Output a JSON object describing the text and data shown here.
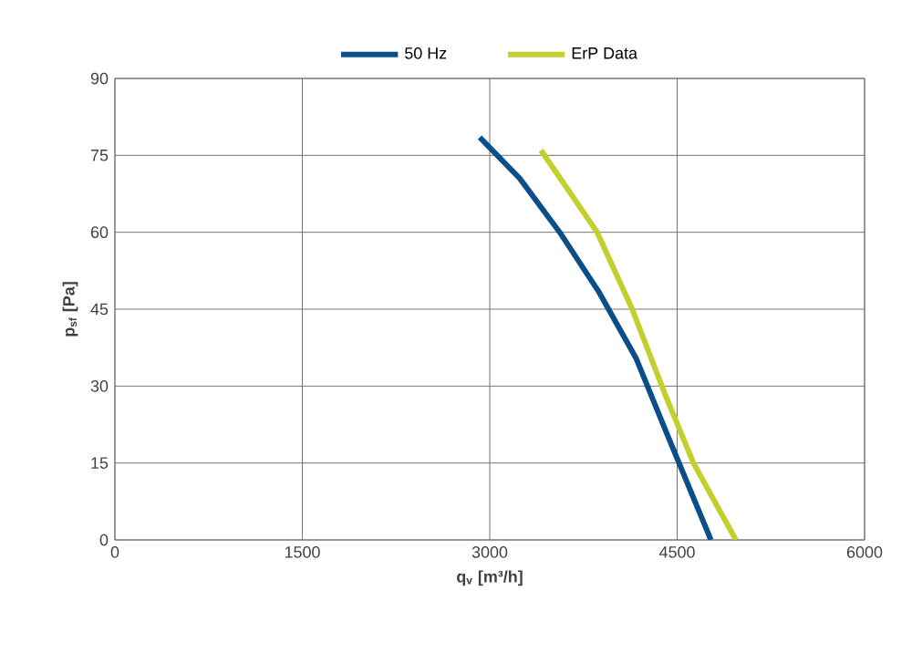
{
  "chart_data": {
    "type": "line",
    "xlabel": "q$_{v}$ [m³/h]",
    "ylabel": "p$_{sf}$ [Pa]",
    "xlim": [
      0,
      6000
    ],
    "xticks": [
      0,
      1500,
      3000,
      4500,
      6000
    ],
    "ylim": [
      0,
      90
    ],
    "yticks": [
      0,
      15,
      30,
      45,
      60,
      75,
      90
    ],
    "grid": true,
    "legend": "top",
    "line_style": "solid",
    "series": [
      {
        "name": "50 Hz",
        "color": "#0b4f8a",
        "x": [
          2920,
          3240,
          3560,
          3870,
          4170,
          4430,
          4770
        ],
        "values": [
          78.5,
          70.5,
          60,
          48.5,
          35.5,
          20,
          0
        ]
      },
      {
        "name": "ErP Data",
        "color": "#c3cf2d",
        "x": [
          3410,
          3860,
          4140,
          4410,
          4630,
          4970
        ],
        "values": [
          76,
          60,
          45,
          28,
          15,
          0
        ]
      }
    ]
  }
}
